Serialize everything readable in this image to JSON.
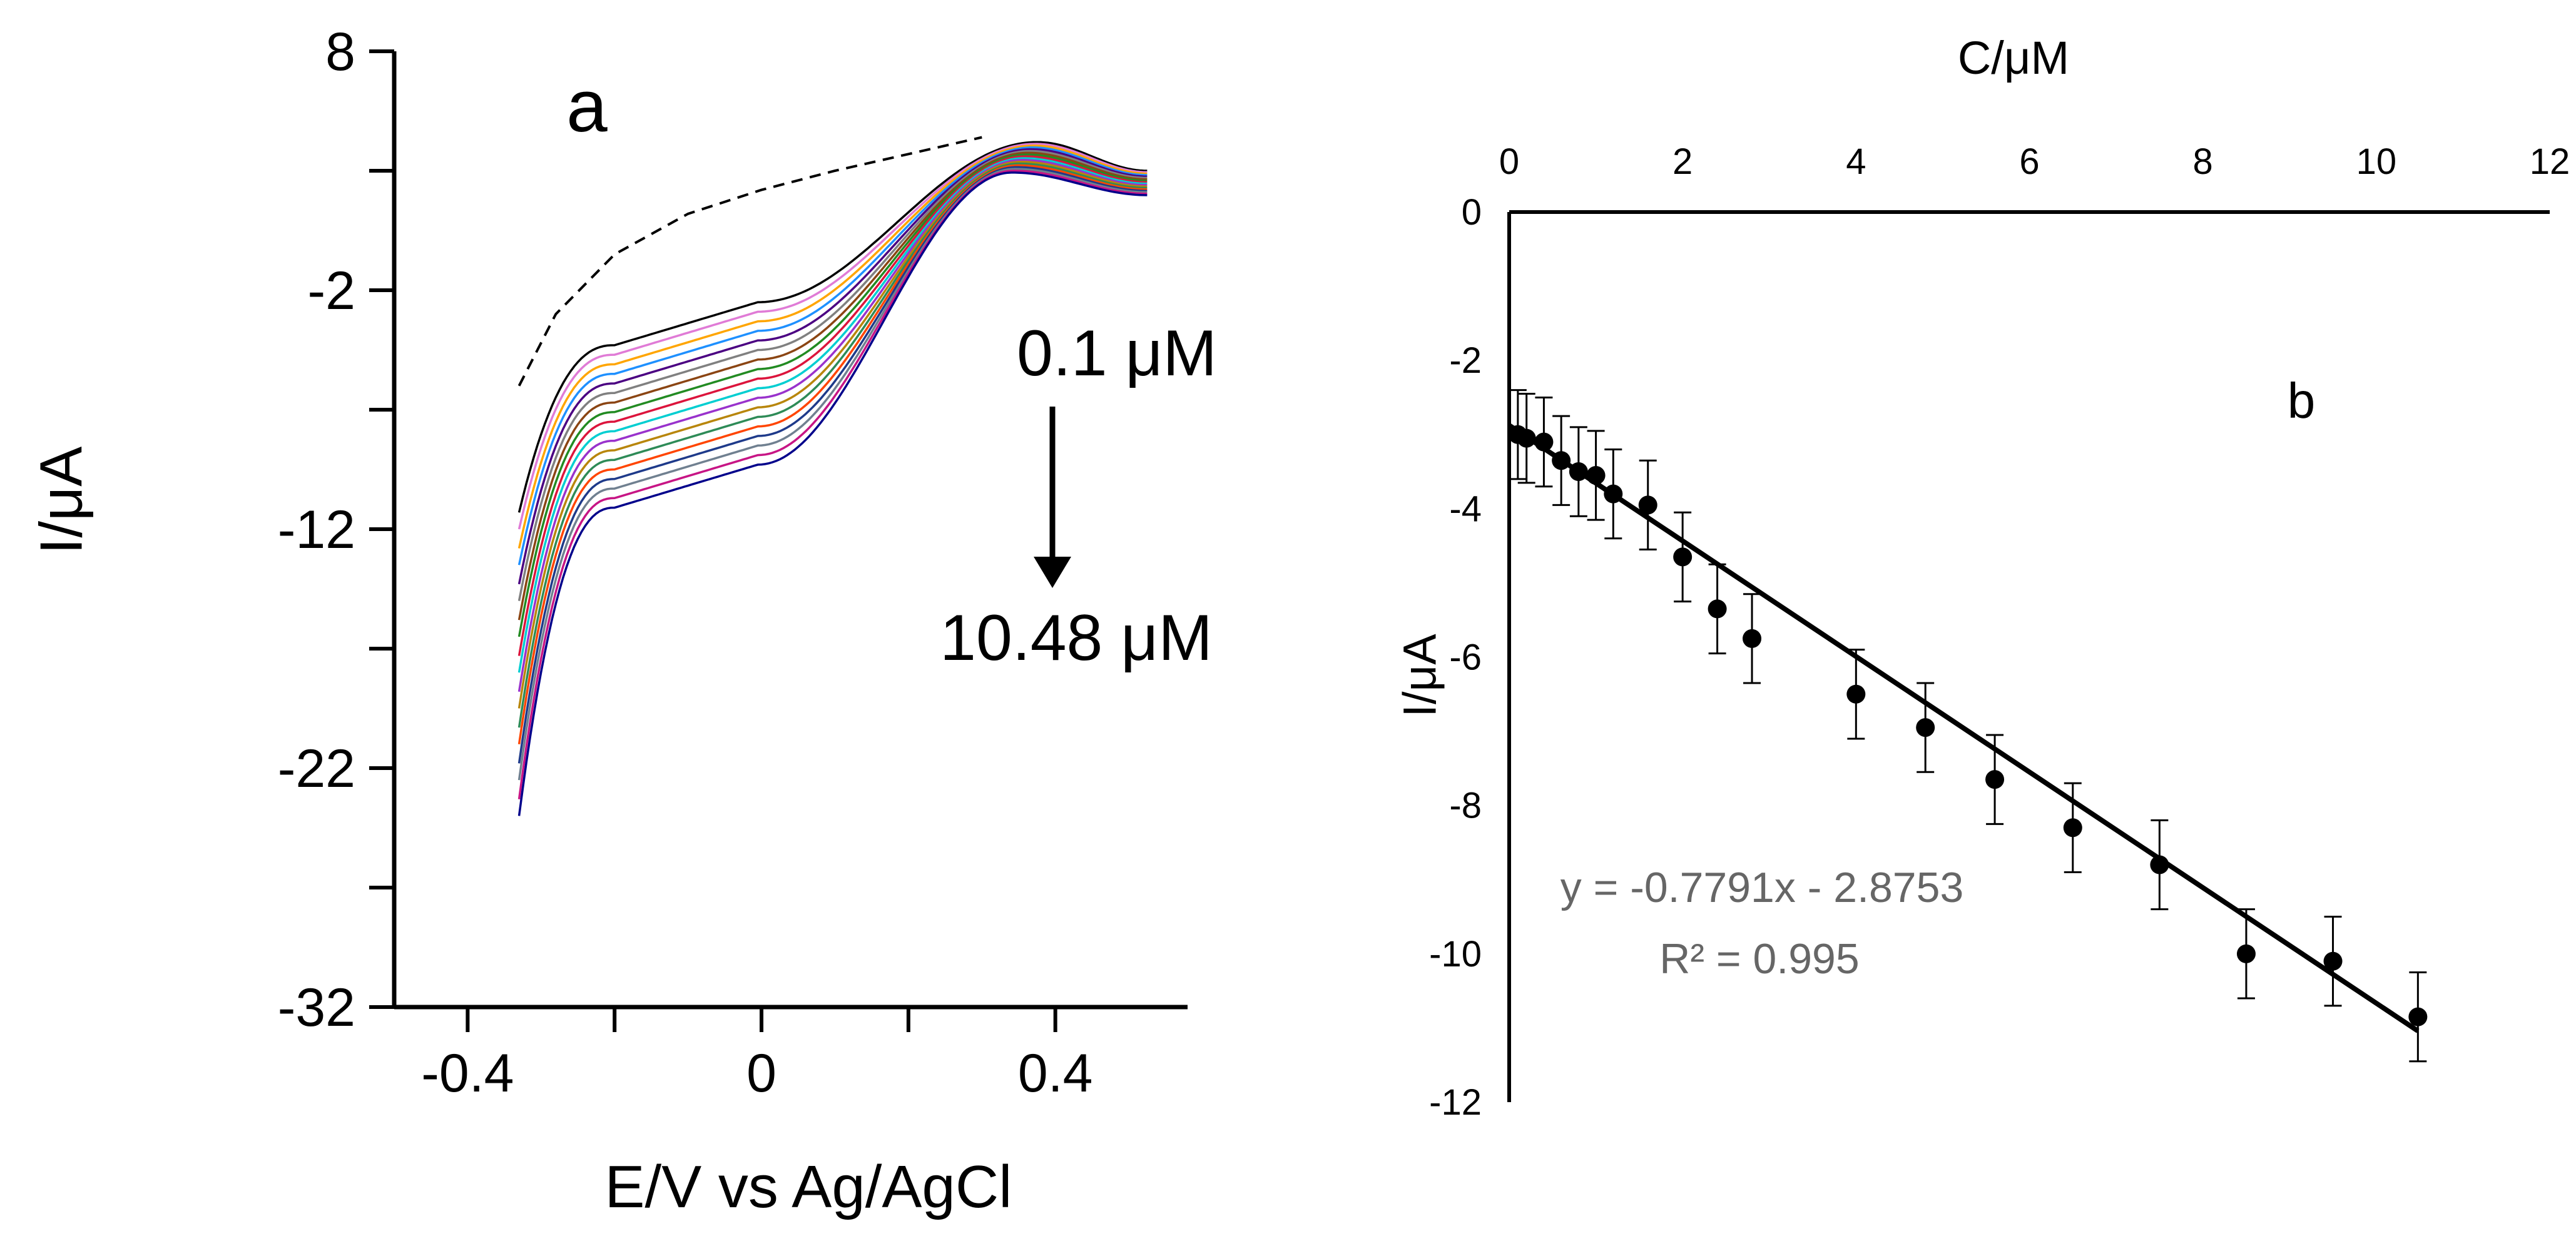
{
  "figure": {
    "panels": [
      {
        "panel_label": "a",
        "xlabel": "E/V vs Ag/AgCl",
        "ylabel": "I/μA",
        "xticks": [
          "-0.4",
          "0",
          "0.4"
        ],
        "yticks": [
          "8",
          "-2",
          "-12",
          "-22",
          "-32"
        ],
        "annotations": {
          "start": "0.1 μM",
          "end": "10.48 μM"
        }
      },
      {
        "panel_label": "b",
        "xlabel": "C/μM",
        "ylabel": "I/μA",
        "xticks": [
          "0",
          "2",
          "4",
          "6",
          "8",
          "10",
          "12"
        ],
        "yticks": [
          "0",
          "-2",
          "-4",
          "-6",
          "-8",
          "-10",
          "-12"
        ],
        "equation": "y = -0.7791x - 2.8753",
        "r2": "R² = 0.995"
      }
    ]
  },
  "chart_data": [
    {
      "type": "line",
      "panel": "a",
      "title": "",
      "xlabel": "E/V vs Ag/AgCl",
      "ylabel": "I/μA",
      "xlim": [
        -0.5,
        0.58
      ],
      "ylim": [
        -32,
        8
      ],
      "grid": false,
      "legend": "none",
      "blank_trace": {
        "style": "dashed",
        "color": "#000000",
        "points": [
          [
            -0.33,
            -6.0
          ],
          [
            -0.28,
            -3.0
          ],
          [
            -0.2,
            -0.5
          ],
          [
            -0.1,
            1.2
          ],
          [
            0.0,
            2.2
          ],
          [
            0.1,
            3.0
          ],
          [
            0.2,
            3.7
          ],
          [
            0.3,
            4.4
          ]
        ]
      },
      "concentration_range": [
        "0.1 μM",
        "10.48 μM"
      ],
      "series_colors": [
        "#000000",
        "#e07bd6",
        "#ffa500",
        "#1e90ff",
        "#4b0082",
        "#808080",
        "#8b4513",
        "#228b22",
        "#dc143c",
        "#00ced1",
        "#9932cc",
        "#b8860b",
        "#2e8b57",
        "#ff4500",
        "#1e3a8a",
        "#708090",
        "#c71585",
        "#00008b"
      ],
      "series": [
        {
          "start": -11.3,
          "plateau": -4.3,
          "shoulder": -2.5
        },
        {
          "start": -12.0,
          "plateau": -4.7,
          "shoulder": -2.9
        },
        {
          "start": -12.8,
          "plateau": -5.1,
          "shoulder": -3.3
        },
        {
          "start": -13.5,
          "plateau": -5.5,
          "shoulder": -3.7
        },
        {
          "start": -14.3,
          "plateau": -5.9,
          "shoulder": -4.1
        },
        {
          "start": -15.0,
          "plateau": -6.3,
          "shoulder": -4.5
        },
        {
          "start": -15.8,
          "plateau": -6.7,
          "shoulder": -4.9
        },
        {
          "start": -16.5,
          "plateau": -7.1,
          "shoulder": -5.3
        },
        {
          "start": -17.3,
          "plateau": -7.5,
          "shoulder": -5.7
        },
        {
          "start": -18.0,
          "plateau": -7.9,
          "shoulder": -6.1
        },
        {
          "start": -18.8,
          "plateau": -8.3,
          "shoulder": -6.5
        },
        {
          "start": -19.5,
          "plateau": -8.7,
          "shoulder": -6.9
        },
        {
          "start": -20.3,
          "plateau": -9.1,
          "shoulder": -7.3
        },
        {
          "start": -21.0,
          "plateau": -9.5,
          "shoulder": -7.7
        },
        {
          "start": -21.8,
          "plateau": -9.9,
          "shoulder": -8.1
        },
        {
          "start": -22.5,
          "plateau": -10.3,
          "shoulder": -8.5
        },
        {
          "start": -23.3,
          "plateau": -10.7,
          "shoulder": -8.9
        },
        {
          "start": -24.0,
          "plateau": -11.1,
          "shoulder": -9.3
        }
      ]
    },
    {
      "type": "scatter",
      "panel": "b",
      "title": "",
      "xlabel": "C/μM",
      "ylabel": "I/μA",
      "xlim": [
        0,
        12
      ],
      "ylim": [
        -12,
        0
      ],
      "grid": false,
      "legend": "none",
      "points": [
        {
          "x": 0.1,
          "y": -3.0,
          "err": 0.6
        },
        {
          "x": 0.2,
          "y": -3.05,
          "err": 0.6
        },
        {
          "x": 0.4,
          "y": -3.1,
          "err": 0.6
        },
        {
          "x": 0.6,
          "y": -3.35,
          "err": 0.6
        },
        {
          "x": 0.8,
          "y": -3.5,
          "err": 0.6
        },
        {
          "x": 1.0,
          "y": -3.55,
          "err": 0.6
        },
        {
          "x": 1.2,
          "y": -3.8,
          "err": 0.6
        },
        {
          "x": 1.6,
          "y": -3.95,
          "err": 0.6
        },
        {
          "x": 2.0,
          "y": -4.65,
          "err": 0.6
        },
        {
          "x": 2.4,
          "y": -5.35,
          "err": 0.6
        },
        {
          "x": 2.8,
          "y": -5.75,
          "err": 0.6
        },
        {
          "x": 4.0,
          "y": -6.5,
          "err": 0.6
        },
        {
          "x": 4.8,
          "y": -6.95,
          "err": 0.6
        },
        {
          "x": 5.6,
          "y": -7.65,
          "err": 0.6
        },
        {
          "x": 6.5,
          "y": -8.3,
          "err": 0.6
        },
        {
          "x": 7.5,
          "y": -8.8,
          "err": 0.6
        },
        {
          "x": 8.5,
          "y": -10.0,
          "err": 0.6
        },
        {
          "x": 9.5,
          "y": -10.1,
          "err": 0.6
        },
        {
          "x": 10.48,
          "y": -10.85,
          "err": 0.6
        }
      ],
      "fit": {
        "slope": -0.7791,
        "intercept": -2.8753,
        "x_range": [
          0,
          10.48
        ],
        "r2": 0.995
      }
    }
  ]
}
